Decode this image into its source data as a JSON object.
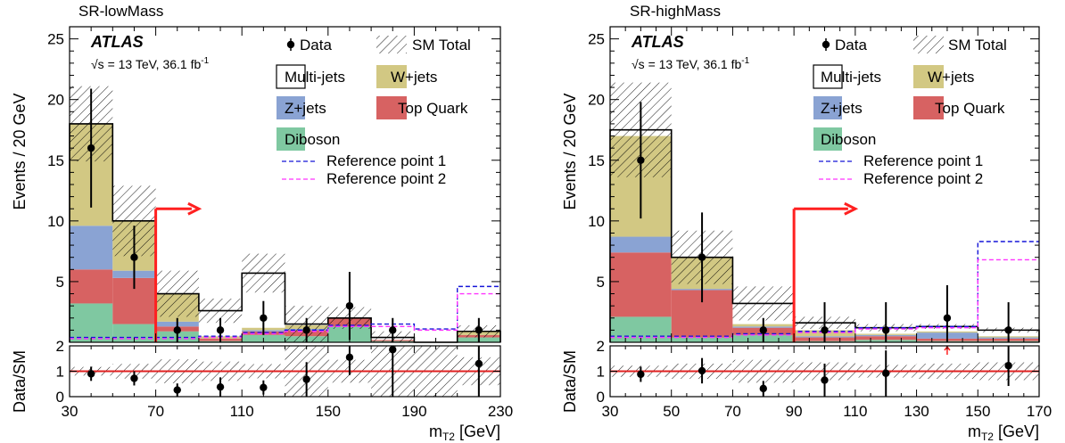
{
  "colors": {
    "multijets": "#ffffff",
    "wjets": "#d2c883",
    "zjets": "#8aa3d3",
    "top": "#d76262",
    "diboson": "#7fc8a1",
    "ref1": "#1515d8",
    "ref2": "#ff33ff",
    "arrow": "#ff2020",
    "ratio_line": "#e02020"
  },
  "chart_data": [
    {
      "type": "bar",
      "region": "SR-lowMass",
      "experiment": "ATLAS",
      "energy_text": "√s = 13 TeV, 36.1 fb",
      "lumi_exponent": "-1",
      "ylabel": "Events / 20 GeV",
      "ratio_ylabel": "Data/SM",
      "xlabel": "m",
      "xlabel_sub": "T2",
      "xlabel_unit": " [GeV]",
      "xlim": [
        30,
        230
      ],
      "ylim": [
        0,
        26
      ],
      "ratio_ylim": [
        0,
        2
      ],
      "xticks": [
        "30",
        "70",
        "110",
        "150",
        "190",
        "230"
      ],
      "yticks": [
        "5",
        "10",
        "15",
        "20",
        "25"
      ],
      "ratio_yticks": [
        "0",
        "1",
        "2"
      ],
      "bin_edges": [
        30,
        50,
        70,
        90,
        110,
        130,
        150,
        170,
        190,
        210,
        230
      ],
      "stack": [
        {
          "key": "diboson",
          "label": "Diboson",
          "values": [
            3.2,
            1.5,
            0.9,
            0.1,
            0.6,
            0.5,
            1.3,
            0.1,
            0.0,
            0.4
          ]
        },
        {
          "key": "top",
          "label": "Top Quark",
          "values": [
            2.8,
            3.8,
            0.4,
            0.2,
            0.3,
            0.5,
            0.7,
            0.1,
            0.0,
            0.2
          ]
        },
        {
          "key": "zjets",
          "label": "Z+jets",
          "values": [
            3.6,
            0.6,
            0.4,
            0.0,
            0.1,
            0.1,
            0.0,
            0.0,
            0.0,
            0.0
          ]
        },
        {
          "key": "wjets",
          "label": "W+jets",
          "values": [
            8.4,
            4.1,
            2.3,
            0.2,
            0.2,
            0.3,
            0.0,
            0.0,
            0.0,
            0.3
          ]
        },
        {
          "key": "multijets",
          "label": "Multi-jets",
          "values": [
            0.0,
            0.0,
            0.0,
            2.1,
            4.5,
            0.1,
            0.1,
            0.2,
            0.0,
            0.0
          ]
        }
      ],
      "sm_total": [
        18.0,
        10.0,
        4.0,
        2.6,
        5.7,
        1.5,
        2.0,
        0.4,
        0.0,
        0.9
      ],
      "sm_unc": [
        3.1,
        2.9,
        1.9,
        1.0,
        1.6,
        1.5,
        0.9,
        0.5,
        0.0,
        0.5
      ],
      "data": {
        "x": [
          40,
          60,
          80,
          100,
          120,
          140,
          160,
          180,
          220
        ],
        "y": [
          16,
          7,
          1,
          1,
          2,
          1,
          3,
          1,
          1
        ],
        "err": [
          4.9,
          2.6,
          1.0,
          1.0,
          1.4,
          1.0,
          2.8,
          1.0,
          1.0
        ]
      },
      "ref1": [
        0.4,
        0.4,
        0.4,
        0.5,
        0.8,
        1.0,
        1.4,
        1.5,
        1.1,
        4.6
      ],
      "ref2": [
        0.3,
        0.3,
        0.3,
        0.4,
        0.7,
        0.9,
        1.3,
        1.3,
        1.0,
        4.0
      ],
      "arrow": {
        "x_start": 70,
        "x_end": 90,
        "y": 11
      },
      "ratio": {
        "x": [
          40,
          60,
          80,
          100,
          120,
          140,
          160,
          180,
          220
        ],
        "y": [
          0.9,
          0.72,
          0.26,
          0.38,
          0.36,
          0.68,
          1.55,
          1.85,
          1.3
        ],
        "err": [
          0.28,
          0.28,
          0.26,
          0.38,
          0.28,
          0.68,
          0.7,
          2.0,
          1.3
        ],
        "band": [
          0.17,
          0.29,
          0.47,
          0.38,
          0.28,
          1.0,
          0.45,
          1.0,
          1.0,
          0.55
        ]
      },
      "legend": {
        "data": "Data",
        "sm_total": "SM Total",
        "multijets": "Multi-jets",
        "wjets": "W+jets",
        "zjets": "Z+jets",
        "top": "Top Quark",
        "diboson": "Diboson",
        "ref1": "Reference point 1",
        "ref2": "Reference point 2"
      }
    },
    {
      "type": "bar",
      "region": "SR-highMass",
      "experiment": "ATLAS",
      "energy_text": "√s = 13 TeV, 36.1 fb",
      "lumi_exponent": "-1",
      "ylabel": "Events / 20 GeV",
      "ratio_ylabel": "Data/SM",
      "xlabel": "m",
      "xlabel_sub": "T2",
      "xlabel_unit": " [GeV]",
      "xlim": [
        30,
        170
      ],
      "ylim": [
        0,
        26
      ],
      "ratio_ylim": [
        0,
        2
      ],
      "xticks": [
        "30",
        "50",
        "70",
        "90",
        "110",
        "130",
        "150",
        "170"
      ],
      "yticks": [
        "5",
        "10",
        "15",
        "20",
        "25"
      ],
      "ratio_yticks": [
        "0",
        "1",
        "2"
      ],
      "bin_edges": [
        30,
        50,
        70,
        90,
        110,
        130,
        150,
        170
      ],
      "stack": [
        {
          "key": "diboson",
          "label": "Diboson",
          "values": [
            2.1,
            0.4,
            0.6,
            0.1,
            0.2,
            0.1,
            0.1
          ]
        },
        {
          "key": "top",
          "label": "Top Quark",
          "values": [
            5.3,
            3.9,
            0.6,
            0.3,
            0.3,
            0.2,
            0.2
          ]
        },
        {
          "key": "zjets",
          "label": "Z+jets",
          "values": [
            1.3,
            0.1,
            0.1,
            0.1,
            0.1,
            0.5,
            0.1
          ]
        },
        {
          "key": "wjets",
          "label": "W+jets",
          "values": [
            8.3,
            2.6,
            0.2,
            0.5,
            0.1,
            0.1,
            0.1
          ]
        },
        {
          "key": "multijets",
          "label": "Multi-jets",
          "values": [
            0.5,
            0.0,
            1.7,
            0.6,
            0.5,
            0.4,
            0.5
          ]
        }
      ],
      "sm_total": [
        17.5,
        7.0,
        3.2,
        1.6,
        1.2,
        1.3,
        1.0
      ],
      "sm_unc": [
        3.9,
        2.2,
        1.4,
        0.5,
        0.3,
        0.2,
        0.2
      ],
      "data": {
        "x": [
          40,
          60,
          80,
          100,
          120,
          140,
          160
        ],
        "y": [
          15,
          7,
          1,
          1,
          1,
          2,
          1
        ],
        "err": [
          4.8,
          3.7,
          1.0,
          2.3,
          2.3,
          2.7,
          2.3
        ]
      },
      "ref1": [
        0.5,
        0.5,
        0.7,
        0.9,
        1.2,
        1.3,
        8.3
      ],
      "ref2": [
        0.4,
        0.4,
        0.6,
        0.8,
        1.1,
        1.2,
        6.8
      ],
      "arrow": {
        "x_start": 90,
        "x_end": 110,
        "y": 11
      },
      "ratio": {
        "x": [
          40,
          60,
          80,
          100,
          120,
          160
        ],
        "y": [
          0.88,
          1.02,
          0.32,
          0.65,
          0.92,
          1.22
        ],
        "err": [
          0.3,
          0.5,
          0.3,
          0.65,
          0.9,
          0.8
        ],
        "band": [
          0.22,
          0.3,
          0.45,
          0.35,
          0.25,
          0.3,
          0.35
        ],
        "overflow_arrow_x": 140
      },
      "legend": {
        "data": "Data",
        "sm_total": "SM Total",
        "multijets": "Multi-jets",
        "wjets": "W+jets",
        "zjets": "Z+jets",
        "top": "Top Quark",
        "diboson": "Diboson",
        "ref1": "Reference point 1",
        "ref2": "Reference point 2"
      }
    }
  ]
}
